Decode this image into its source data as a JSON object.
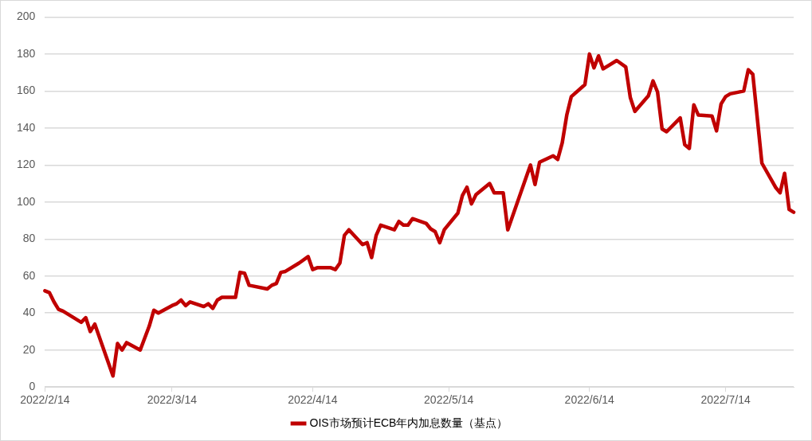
{
  "chart_data": {
    "type": "line",
    "xlim": [
      "2022-02-14",
      "2022-07-29"
    ],
    "xticks": [
      {
        "value": "2022-02-14",
        "label": "2022/2/14"
      },
      {
        "value": "2022-03-14",
        "label": "2022/3/14"
      },
      {
        "value": "2022-04-14",
        "label": "2022/4/14"
      },
      {
        "value": "2022-05-14",
        "label": "2022/5/14"
      },
      {
        "value": "2022-06-14",
        "label": "2022/6/14"
      },
      {
        "value": "2022-07-14",
        "label": "2022/7/14"
      }
    ],
    "ylim": [
      0,
      200
    ],
    "yticks": [
      0,
      20,
      40,
      60,
      80,
      100,
      120,
      140,
      160,
      180,
      200
    ],
    "grid": "y",
    "legend": "bottom",
    "marker": "none",
    "line_style": "solid",
    "series": [
      {
        "name": "OIS市场预计ECB年内加息数量（基点）",
        "color": "#c00000",
        "x": [
          "2022-02-14",
          "2022-02-15",
          "2022-02-16",
          "2022-02-17",
          "2022-02-18",
          "2022-02-22",
          "2022-02-23",
          "2022-02-24",
          "2022-02-25",
          "2022-03-01",
          "2022-03-02",
          "2022-03-03",
          "2022-03-04",
          "2022-03-07",
          "2022-03-09",
          "2022-03-10",
          "2022-03-11",
          "2022-03-14",
          "2022-03-15",
          "2022-03-16",
          "2022-03-17",
          "2022-03-18",
          "2022-03-21",
          "2022-03-22",
          "2022-03-23",
          "2022-03-24",
          "2022-03-25",
          "2022-03-28",
          "2022-03-29",
          "2022-03-30",
          "2022-03-31",
          "2022-04-04",
          "2022-04-05",
          "2022-04-06",
          "2022-04-07",
          "2022-04-08",
          "2022-04-11",
          "2022-04-13",
          "2022-04-14",
          "2022-04-15",
          "2022-04-18",
          "2022-04-19",
          "2022-04-20",
          "2022-04-21",
          "2022-04-22",
          "2022-04-25",
          "2022-04-26",
          "2022-04-27",
          "2022-04-28",
          "2022-04-29",
          "2022-05-02",
          "2022-05-03",
          "2022-05-04",
          "2022-05-05",
          "2022-05-06",
          "2022-05-09",
          "2022-05-10",
          "2022-05-11",
          "2022-05-12",
          "2022-05-13",
          "2022-05-16",
          "2022-05-17",
          "2022-05-18",
          "2022-05-19",
          "2022-05-20",
          "2022-05-23",
          "2022-05-24",
          "2022-05-25",
          "2022-05-26",
          "2022-05-27",
          "2022-05-31",
          "2022-06-01",
          "2022-06-02",
          "2022-06-03",
          "2022-06-06",
          "2022-06-07",
          "2022-06-08",
          "2022-06-09",
          "2022-06-10",
          "2022-06-13",
          "2022-06-14",
          "2022-06-15",
          "2022-06-16",
          "2022-06-17",
          "2022-06-20",
          "2022-06-22",
          "2022-06-23",
          "2022-06-24",
          "2022-06-27",
          "2022-06-28",
          "2022-06-29",
          "2022-06-30",
          "2022-07-01",
          "2022-07-04",
          "2022-07-05",
          "2022-07-06",
          "2022-07-07",
          "2022-07-08",
          "2022-07-11",
          "2022-07-12",
          "2022-07-13",
          "2022-07-14",
          "2022-07-15",
          "2022-07-18",
          "2022-07-19",
          "2022-07-20",
          "2022-07-22",
          "2022-07-25",
          "2022-07-26",
          "2022-07-27",
          "2022-07-28",
          "2022-07-29"
        ],
        "values": [
          52,
          51,
          46,
          42,
          41,
          35,
          37.5,
          30,
          34,
          6,
          23.5,
          20,
          24,
          20,
          33,
          41.5,
          40,
          44,
          45,
          47,
          44,
          46,
          43.5,
          45,
          42.5,
          47,
          48.5,
          48.5,
          62,
          61.5,
          55,
          53,
          55,
          56,
          62,
          62.5,
          67,
          70.5,
          63.5,
          64.5,
          64.5,
          63.5,
          67,
          82,
          85,
          77,
          78,
          70,
          82,
          87.5,
          85,
          89.5,
          87.5,
          87.5,
          91,
          88.5,
          85.5,
          84,
          78,
          85,
          94,
          103.5,
          108,
          99,
          104,
          110,
          105,
          105,
          105,
          85,
          113,
          120,
          109.5,
          121.5,
          125,
          123,
          132,
          147,
          157,
          163.5,
          180,
          172.5,
          179,
          172,
          176.5,
          173,
          156.5,
          149,
          157.5,
          165.5,
          159.5,
          139.5,
          138,
          145.5,
          131,
          129,
          152.5,
          147,
          146.5,
          138.5,
          153,
          157,
          158.5,
          160,
          171.5,
          169,
          121,
          108,
          105,
          115.5,
          96,
          94.5
        ]
      }
    ]
  }
}
